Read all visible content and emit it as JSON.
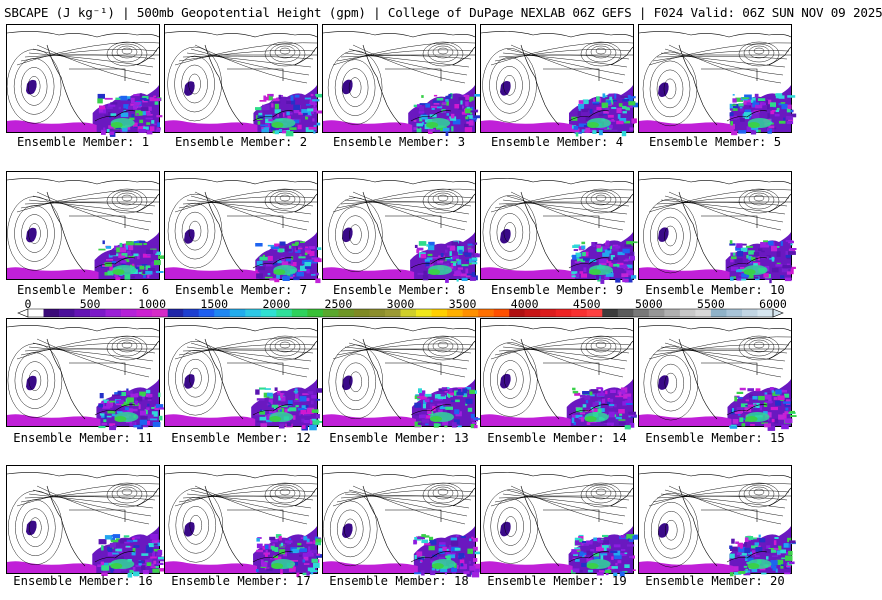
{
  "title": "SBCAPE (J kg⁻¹) | 500mb Geopotential Height (gpm) | College of DuPage NEXLAB 06Z GEFS | F024 Valid: 06Z SUN NOV 09 2025",
  "map": {
    "field": "SBCAPE (J kg⁻¹)",
    "contour_field": "500mb Geopotential Height (gpm)",
    "model": "06Z GEFS",
    "forecast_hour": "F024",
    "valid": "06Z SUN NOV 09 2025"
  },
  "members": [
    {
      "label": "Ensemble Member: 1"
    },
    {
      "label": "Ensemble Member: 2"
    },
    {
      "label": "Ensemble Member: 3"
    },
    {
      "label": "Ensemble Member: 4"
    },
    {
      "label": "Ensemble Member: 5"
    },
    {
      "label": "Ensemble Member: 6"
    },
    {
      "label": "Ensemble Member: 7"
    },
    {
      "label": "Ensemble Member: 8"
    },
    {
      "label": "Ensemble Member: 9"
    },
    {
      "label": "Ensemble Member: 10"
    },
    {
      "label": "Ensemble Member: 11"
    },
    {
      "label": "Ensemble Member: 12"
    },
    {
      "label": "Ensemble Member: 13"
    },
    {
      "label": "Ensemble Member: 14"
    },
    {
      "label": "Ensemble Member: 15"
    },
    {
      "label": "Ensemble Member: 16"
    },
    {
      "label": "Ensemble Member: 17"
    },
    {
      "label": "Ensemble Member: 18"
    },
    {
      "label": "Ensemble Member: 19"
    },
    {
      "label": "Ensemble Member: 20"
    }
  ],
  "colorbar": {
    "ticks": [
      "0",
      "500",
      "1000",
      "1500",
      "2000",
      "2500",
      "3000",
      "3500",
      "4000",
      "4500",
      "5000",
      "5500",
      "6000"
    ],
    "colors": [
      "#ffffff",
      "#3a0a78",
      "#4b0f9a",
      "#6414b4",
      "#7c19c8",
      "#9b1fd6",
      "#b521d8",
      "#cc1fd2",
      "#d62ac8",
      "#1f26a8",
      "#1d3fd0",
      "#1e5ff0",
      "#1f87f2",
      "#22acec",
      "#2ec8e6",
      "#2fe0d2",
      "#2fe09a",
      "#2ed25c",
      "#38c036",
      "#5aa82e",
      "#6e9626",
      "#7f8a24",
      "#8c8e2c",
      "#9c9a34",
      "#cfcf2a",
      "#f0e81a",
      "#ffd000",
      "#ffb000",
      "#ff9000",
      "#ff7000",
      "#ff5000",
      "#b01010",
      "#c81616",
      "#dc1c1c",
      "#ee2222",
      "#f83030",
      "#ff4040",
      "#3c3c3c",
      "#5a5a5a",
      "#787878",
      "#969696",
      "#b0b0b0",
      "#c8c8c8",
      "#d8d8d8",
      "#8fb2c8",
      "#a8c4d8",
      "#c2d6e4",
      "#d6e6f0"
    ]
  }
}
